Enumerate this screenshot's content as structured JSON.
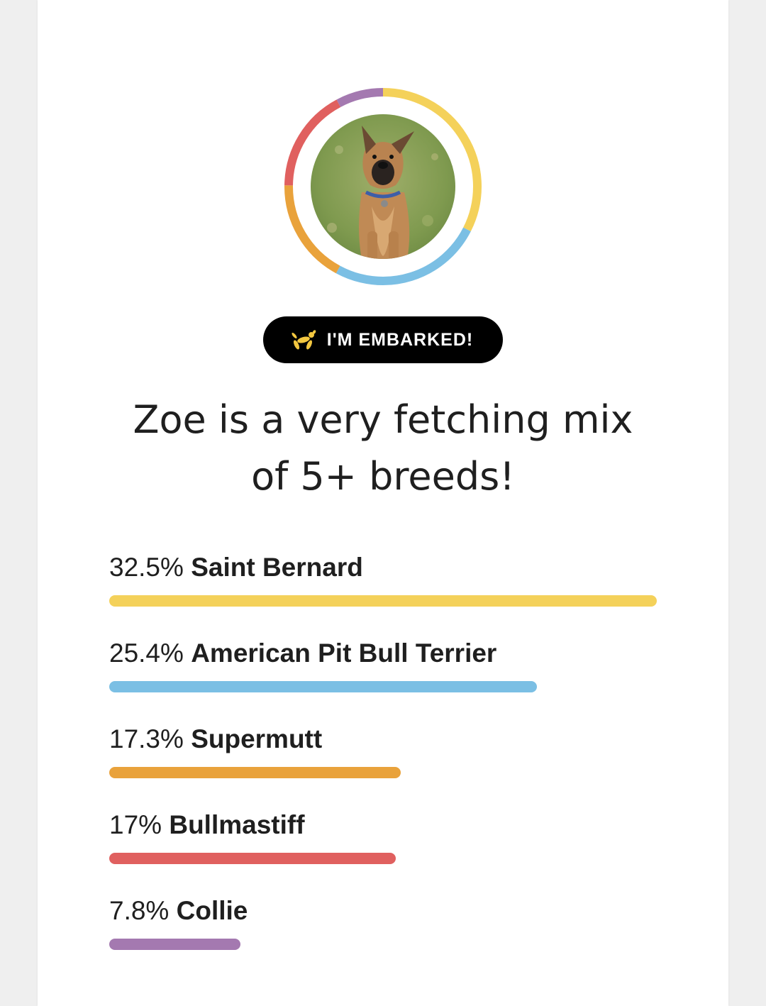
{
  "header": {
    "badge_label": "I'M EMBARKED!",
    "badge_icon": "balloon-dog-icon",
    "badge_icon_color": "#f3c740"
  },
  "headline": {
    "line1": "Zoe is a very fetching mix",
    "line2": "of 5+ breeds!"
  },
  "avatar": {
    "icon": "dog-photo",
    "ring_colors": [
      "#f4d15a",
      "#7bbfe4",
      "#e9a23b",
      "#e0605f",
      "#a479b0"
    ]
  },
  "breeds": [
    {
      "percent_label": "32.5%",
      "name": "Saint Bernard",
      "value": 32.5,
      "color": "#f4d15a"
    },
    {
      "percent_label": "25.4%",
      "name": "American Pit Bull Terrier",
      "value": 25.4,
      "color": "#7bbfe4"
    },
    {
      "percent_label": "17.3%",
      "name": "Supermutt",
      "value": 17.3,
      "color": "#e9a23b"
    },
    {
      "percent_label": "17%",
      "name": "Bullmastiff",
      "value": 17,
      "color": "#e0605f"
    },
    {
      "percent_label": "7.8%",
      "name": "Collie",
      "value": 7.8,
      "color": "#a479b0"
    }
  ]
}
